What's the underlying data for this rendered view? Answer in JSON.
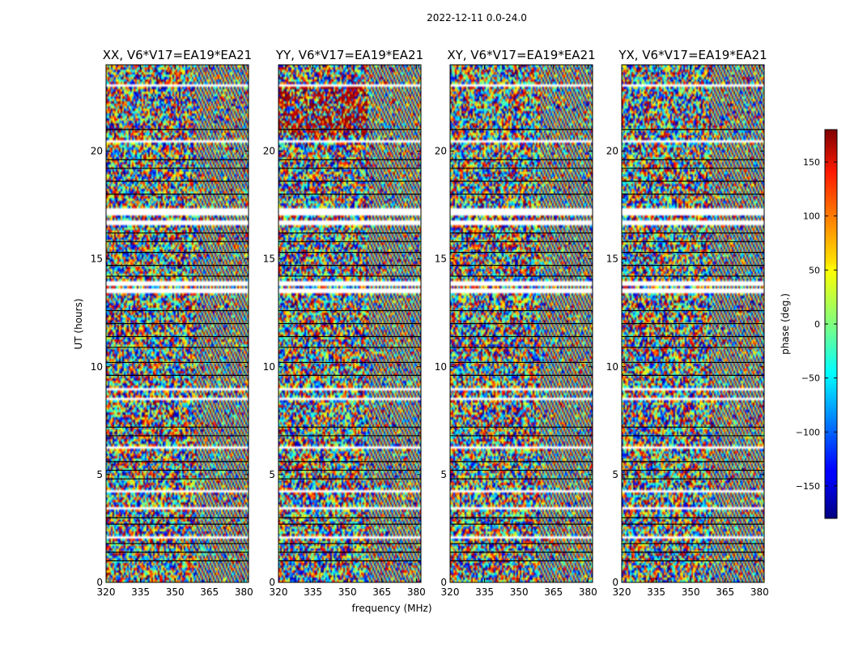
{
  "chart_data": {
    "type": "heatmap",
    "suptitle": "2022-12-11 0.0-24.0",
    "xlabel": "frequency (MHz)",
    "ylabel": "UT (hours)",
    "xlim": [
      320,
      382
    ],
    "ylim": [
      0,
      24
    ],
    "xticks": [
      320,
      335,
      350,
      365,
      380
    ],
    "yticks": [
      0,
      5,
      10,
      15,
      20
    ],
    "panels": [
      {
        "title": "XX, V6*V17=EA19*EA21"
      },
      {
        "title": "YY, V6*V17=EA19*EA21"
      },
      {
        "title": "XY, V6*V17=EA19*EA21"
      },
      {
        "title": "YX, V6*V17=EA19*EA21"
      }
    ],
    "colorbar": {
      "label": "phase (deg.)",
      "range": [
        -180,
        180
      ],
      "ticks": [
        150,
        100,
        50,
        0,
        -50,
        -100,
        -150
      ],
      "tick_labels": [
        "150",
        "100",
        "50",
        "0",
        "−50",
        "−100",
        "−150"
      ]
    }
  }
}
